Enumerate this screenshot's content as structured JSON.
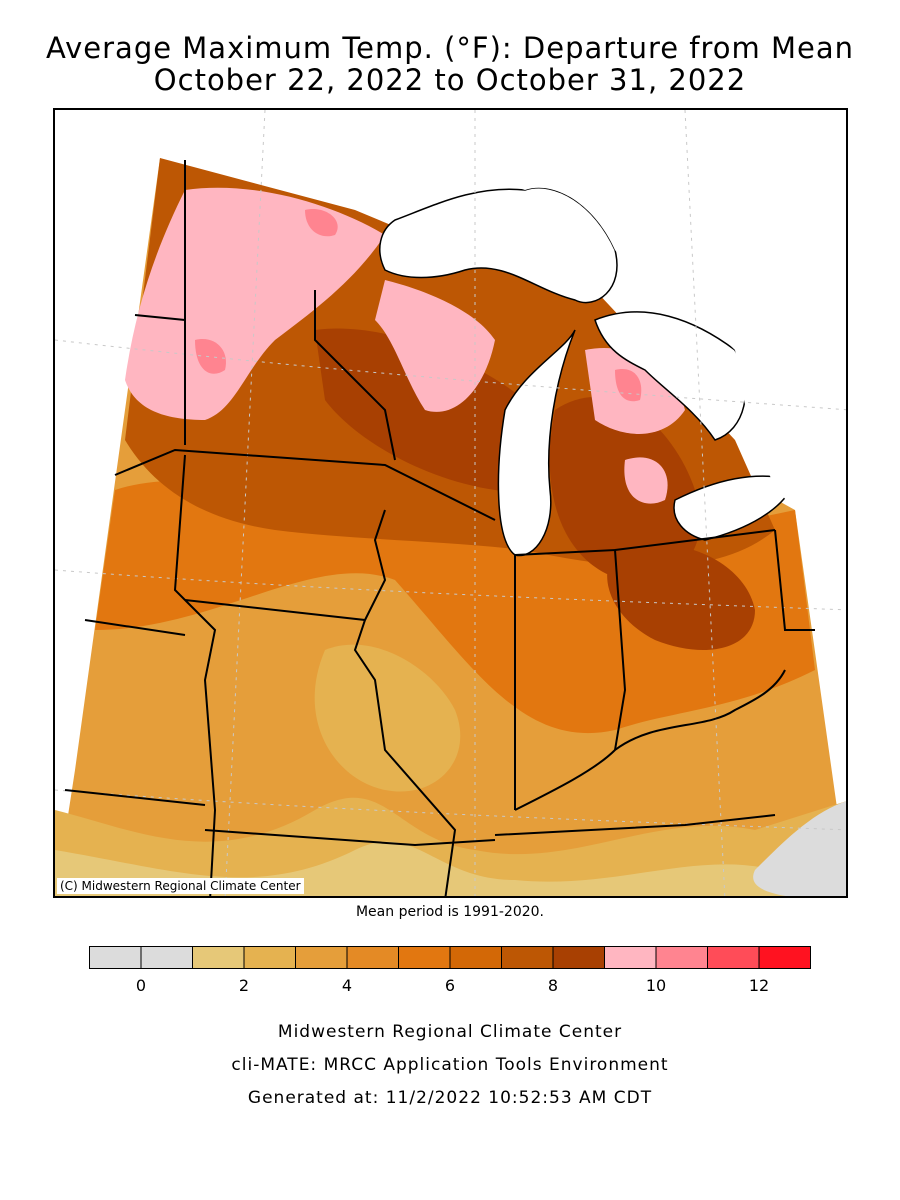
{
  "title_line1": "Average Maximum Temp. (°F): Departure from Mean",
  "title_line2": "October 22, 2022 to October 31, 2022",
  "copyright": "(C) Midwestern Regional Climate Center",
  "mean_period": "Mean period is 1991-2020.",
  "legend": {
    "colors": [
      "#dcdcdc",
      "#dcdcdc",
      "#e6c878",
      "#e5b250",
      "#e59e3a",
      "#e48a25",
      "#e27710",
      "#d36806",
      "#bd5704",
      "#a84002",
      "#ffb6c1",
      "#ff8490",
      "#ff4c58",
      "#ff1220"
    ],
    "tick_labels": [
      "0",
      "2",
      "4",
      "6",
      "8",
      "10",
      "12"
    ]
  },
  "footer": {
    "line1": "Midwestern Regional Climate Center",
    "line2": "cli-MATE: MRCC Application Tools Environment",
    "line3": "Generated at: 11/2/2022 10:52:53 AM CDT"
  },
  "colors": {
    "lake": "#ffffff",
    "border": "#000000",
    "grid": "#c8c8c8"
  }
}
